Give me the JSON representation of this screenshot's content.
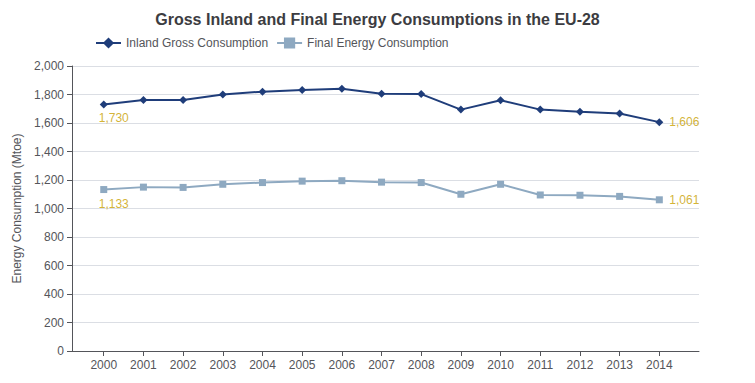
{
  "chart_data": {
    "type": "line",
    "title": "Gross Inland and Final Energy Consumptions in the EU-28",
    "ylabel": "Energy Consumption (Mtoe)",
    "x": [
      2000,
      2001,
      2002,
      2003,
      2004,
      2005,
      2006,
      2007,
      2008,
      2009,
      2010,
      2011,
      2012,
      2013,
      2014
    ],
    "series": [
      {
        "name": "Inland Gross Consumption",
        "color": "#1f3d7a",
        "marker": "diamond",
        "line_style": "solid",
        "values": [
          1730,
          1762,
          1762,
          1800,
          1820,
          1832,
          1841,
          1805,
          1803,
          1694,
          1759,
          1694,
          1679,
          1666,
          1606
        ]
      },
      {
        "name": "Final Energy Consumption",
        "color": "#8ea9c1",
        "marker": "square",
        "line_style": "solid",
        "values": [
          1133,
          1150,
          1148,
          1170,
          1182,
          1192,
          1195,
          1185,
          1182,
          1100,
          1170,
          1095,
          1093,
          1085,
          1061
        ]
      }
    ],
    "annotations": [
      {
        "text": "1,730",
        "x": 2000,
        "y": 1730,
        "color": "#c8a000"
      },
      {
        "text": "1,606",
        "x": 2014,
        "y": 1606,
        "color": "#c8a000"
      },
      {
        "text": "1,133",
        "x": 2000,
        "y": 1133,
        "color": "#c8a000"
      },
      {
        "text": "1,061",
        "x": 2014,
        "y": 1061,
        "color": "#c8a000"
      }
    ],
    "xlim": [
      1999.2,
      2015.0
    ],
    "xticks": [
      2000,
      2001,
      2002,
      2003,
      2004,
      2005,
      2006,
      2007,
      2008,
      2009,
      2010,
      2011,
      2012,
      2013,
      2014
    ],
    "ylim": [
      0,
      2000
    ],
    "yticks": [
      0,
      200,
      400,
      600,
      800,
      {
        "value": 1000,
        "label": "1,000"
      },
      {
        "value": 1200,
        "label": "1,200"
      },
      {
        "value": 1400,
        "label": "1,400"
      },
      {
        "value": 1600,
        "label": "1,600"
      },
      {
        "value": 1800,
        "label": "1,800"
      },
      {
        "value": 2000,
        "label": "2,000"
      }
    ],
    "grid": true,
    "legend": "upper left"
  }
}
